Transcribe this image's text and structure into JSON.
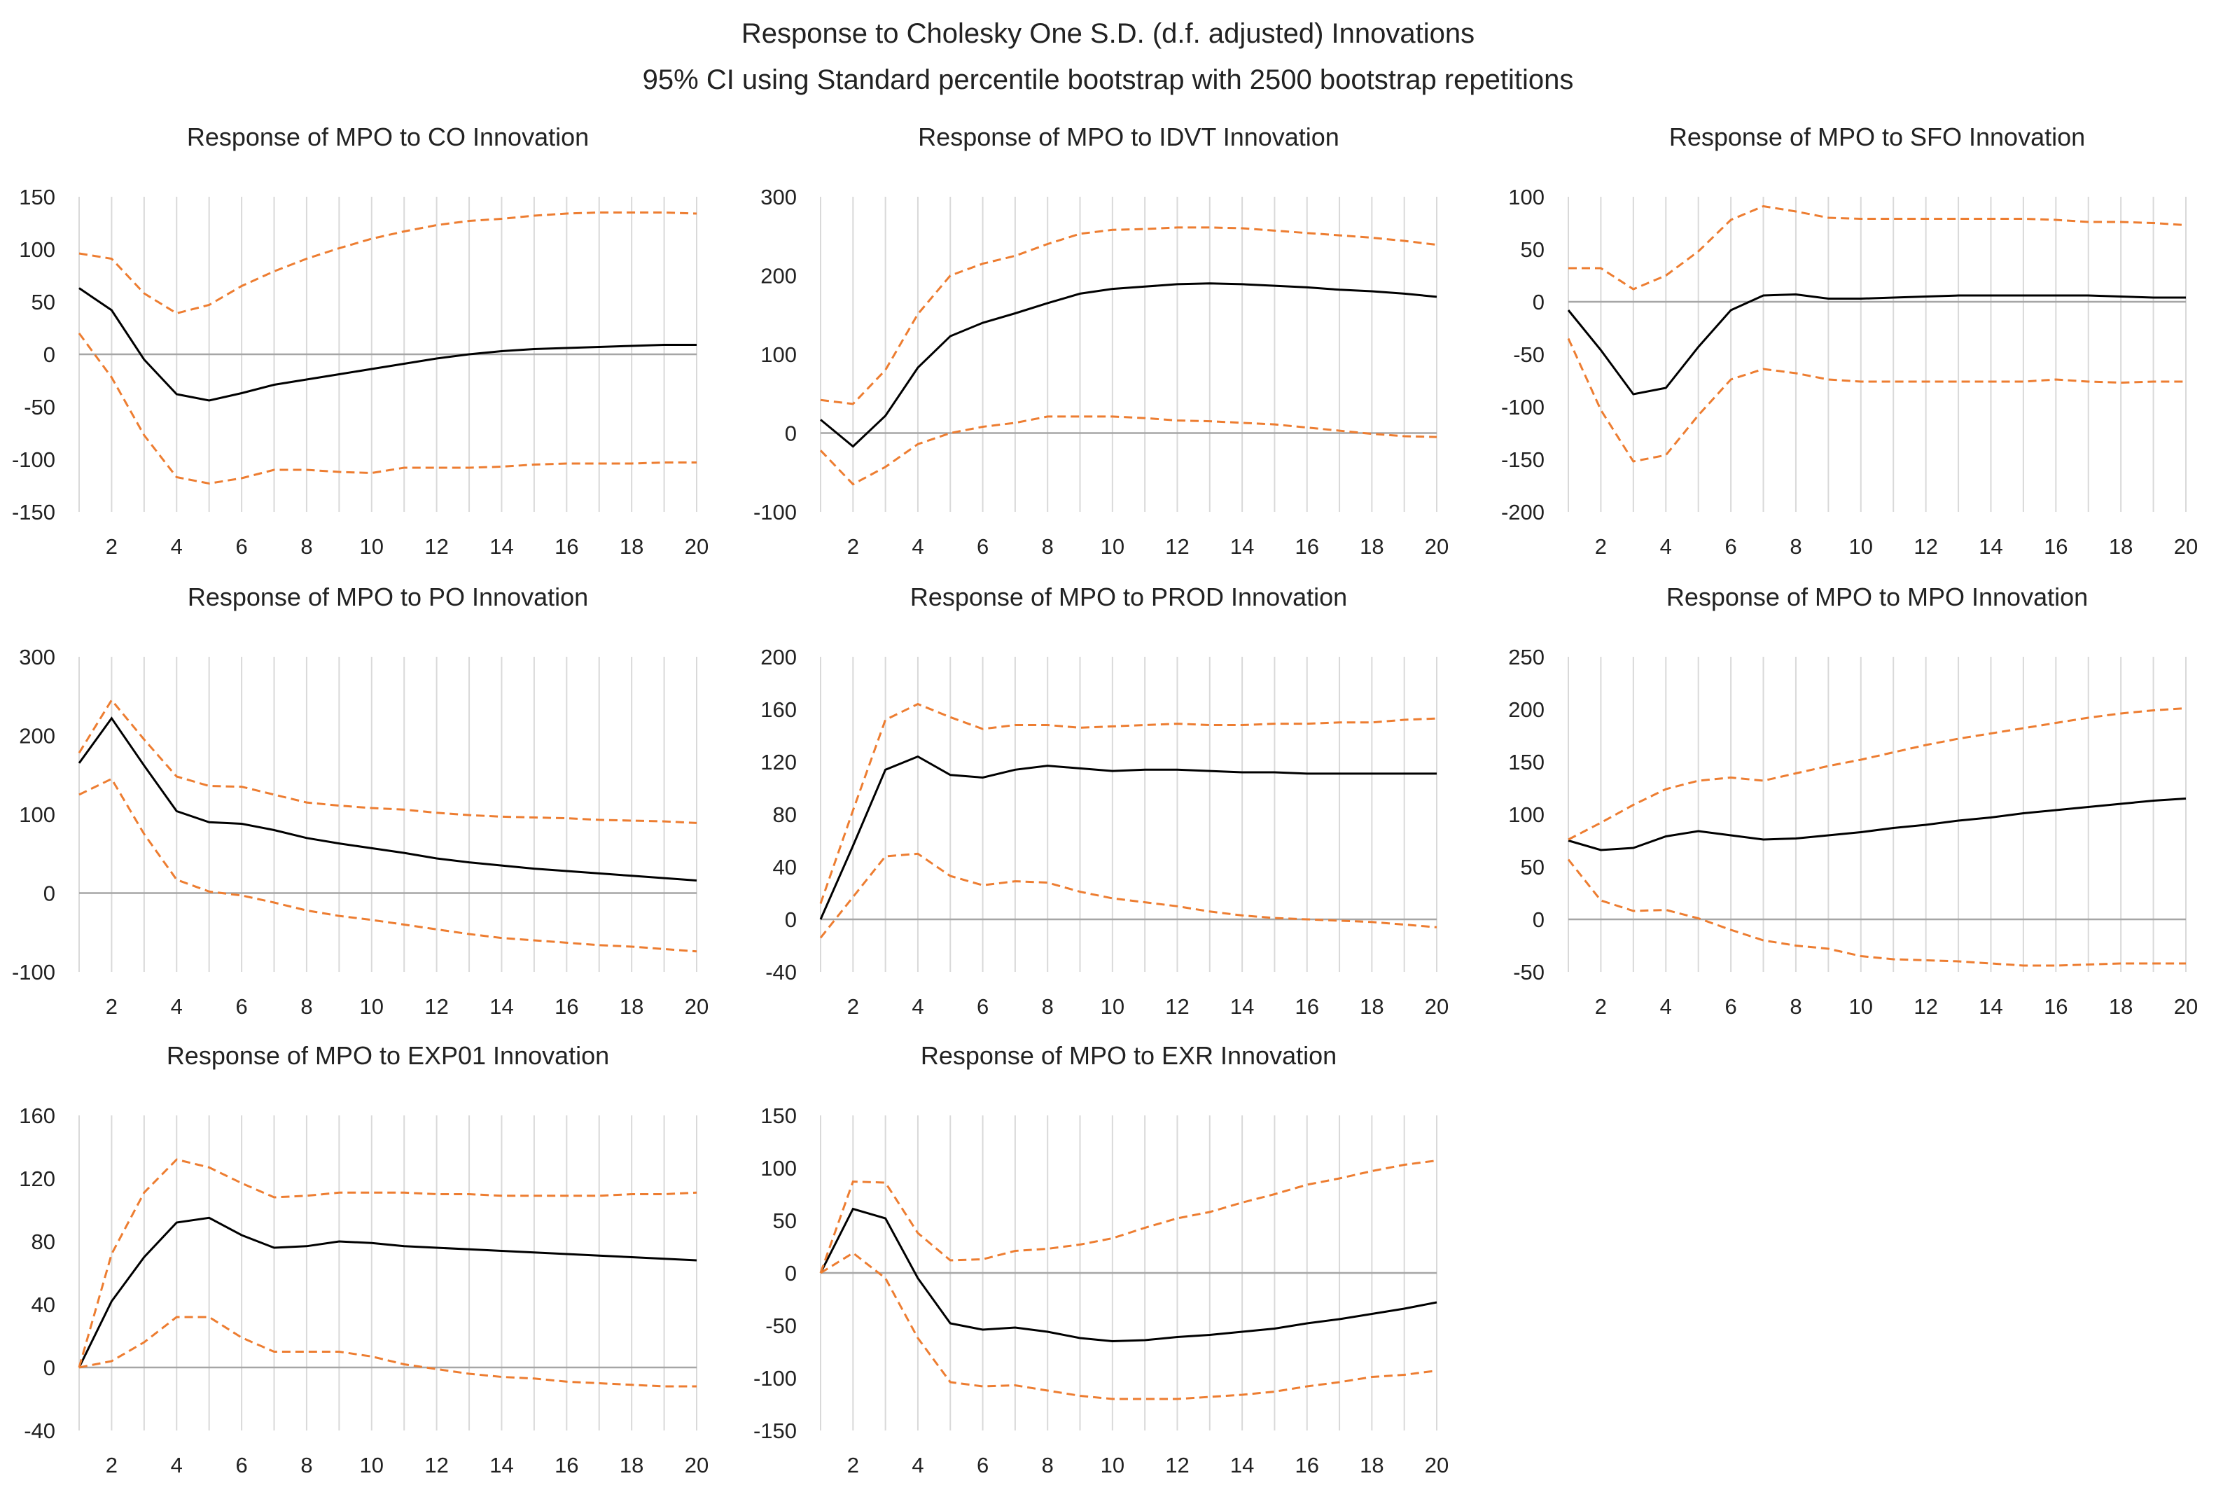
{
  "title": "Response to Cholesky One S.D. (d.f. adjusted) Innovations",
  "subtitle": "95% CI using Standard percentile bootstrap with 2500 bootstrap repetitions",
  "colors": {
    "response": "#000000",
    "ci": "#ED7D31",
    "grid": "#d9d9d9",
    "zero": "#a6a6a6"
  },
  "chart_data": [
    {
      "type": "line",
      "title": "Response of MPO to CO Innovation",
      "x": [
        1,
        2,
        3,
        4,
        5,
        6,
        7,
        8,
        9,
        10,
        11,
        12,
        13,
        14,
        15,
        16,
        17,
        18,
        19,
        20
      ],
      "xticks": [
        2,
        4,
        6,
        8,
        10,
        12,
        14,
        16,
        18,
        20
      ],
      "yticks": [
        -150,
        -100,
        -50,
        0,
        50,
        100,
        150
      ],
      "ylim": [
        -150,
        150
      ],
      "series": [
        {
          "name": "Response",
          "values": [
            63,
            42,
            -5,
            -38,
            -44,
            -37,
            -29,
            -24,
            -19,
            -14,
            -9,
            -4,
            0,
            3,
            5,
            6,
            7,
            8,
            9,
            9
          ]
        },
        {
          "name": "Upper CI",
          "values": [
            96,
            91,
            58,
            39,
            47,
            65,
            79,
            91,
            101,
            110,
            117,
            123,
            127,
            129,
            132,
            134,
            135,
            135,
            135,
            134
          ]
        },
        {
          "name": "Lower CI",
          "values": [
            20,
            -22,
            -77,
            -117,
            -123,
            -118,
            -110,
            -110,
            -112,
            -113,
            -108,
            -108,
            -108,
            -107,
            -105,
            -104,
            -104,
            -104,
            -103,
            -103
          ]
        }
      ]
    },
    {
      "type": "line",
      "title": "Response of MPO to IDVT Innovation",
      "x": [
        1,
        2,
        3,
        4,
        5,
        6,
        7,
        8,
        9,
        10,
        11,
        12,
        13,
        14,
        15,
        16,
        17,
        18,
        19,
        20
      ],
      "xticks": [
        2,
        4,
        6,
        8,
        10,
        12,
        14,
        16,
        18,
        20
      ],
      "yticks": [
        -100,
        0,
        100,
        200,
        300
      ],
      "ylim": [
        -100,
        300
      ],
      "series": [
        {
          "name": "Response",
          "values": [
            17,
            -17,
            22,
            83,
            123,
            140,
            152,
            165,
            177,
            183,
            186,
            189,
            190,
            189,
            187,
            185,
            182,
            180,
            177,
            173
          ]
        },
        {
          "name": "Upper CI",
          "values": [
            42,
            37,
            80,
            151,
            200,
            215,
            225,
            240,
            253,
            258,
            259,
            261,
            261,
            260,
            257,
            254,
            251,
            248,
            244,
            239
          ]
        },
        {
          "name": "Lower CI",
          "values": [
            -22,
            -65,
            -43,
            -14,
            0,
            8,
            13,
            21,
            21,
            21,
            19,
            16,
            15,
            13,
            11,
            7,
            3,
            -1,
            -4,
            -5
          ]
        }
      ]
    },
    {
      "type": "line",
      "title": "Response of MPO to SFO Innovation",
      "x": [
        1,
        2,
        3,
        4,
        5,
        6,
        7,
        8,
        9,
        10,
        11,
        12,
        13,
        14,
        15,
        16,
        17,
        18,
        19,
        20
      ],
      "xticks": [
        2,
        4,
        6,
        8,
        10,
        12,
        14,
        16,
        18,
        20
      ],
      "yticks": [
        -200,
        -150,
        -100,
        -50,
        0,
        50,
        100
      ],
      "ylim": [
        -200,
        100
      ],
      "series": [
        {
          "name": "Response",
          "values": [
            -8,
            -46,
            -88,
            -82,
            -43,
            -8,
            6,
            7,
            3,
            3,
            4,
            5,
            6,
            6,
            6,
            6,
            6,
            5,
            4,
            4
          ]
        },
        {
          "name": "Upper CI",
          "values": [
            32,
            32,
            12,
            25,
            48,
            78,
            91,
            86,
            80,
            79,
            79,
            79,
            79,
            79,
            79,
            78,
            76,
            76,
            75,
            73
          ]
        },
        {
          "name": "Lower CI",
          "values": [
            -35,
            -103,
            -152,
            -146,
            -108,
            -74,
            -64,
            -68,
            -74,
            -76,
            -76,
            -76,
            -76,
            -76,
            -76,
            -74,
            -76,
            -77,
            -76,
            -76
          ]
        }
      ]
    },
    {
      "type": "line",
      "title": "Response of MPO to PO Innovation",
      "x": [
        1,
        2,
        3,
        4,
        5,
        6,
        7,
        8,
        9,
        10,
        11,
        12,
        13,
        14,
        15,
        16,
        17,
        18,
        19,
        20
      ],
      "xticks": [
        2,
        4,
        6,
        8,
        10,
        12,
        14,
        16,
        18,
        20
      ],
      "yticks": [
        -100,
        0,
        100,
        200,
        300
      ],
      "ylim": [
        -100,
        300
      ],
      "series": [
        {
          "name": "Response",
          "values": [
            165,
            222,
            162,
            104,
            90,
            88,
            80,
            70,
            63,
            57,
            51,
            44,
            39,
            35,
            31,
            28,
            25,
            22,
            19,
            16
          ]
        },
        {
          "name": "Upper CI",
          "values": [
            178,
            245,
            195,
            148,
            136,
            135,
            125,
            115,
            111,
            108,
            106,
            102,
            99,
            97,
            96,
            95,
            93,
            92,
            91,
            89
          ]
        },
        {
          "name": "Lower CI",
          "values": [
            125,
            145,
            75,
            17,
            2,
            -3,
            -12,
            -22,
            -29,
            -34,
            -40,
            -46,
            -52,
            -57,
            -60,
            -63,
            -66,
            -68,
            -71,
            -74
          ]
        }
      ]
    },
    {
      "type": "line",
      "title": "Response of MPO to PROD Innovation",
      "x": [
        1,
        2,
        3,
        4,
        5,
        6,
        7,
        8,
        9,
        10,
        11,
        12,
        13,
        14,
        15,
        16,
        17,
        18,
        19,
        20
      ],
      "xticks": [
        2,
        4,
        6,
        8,
        10,
        12,
        14,
        16,
        18,
        20
      ],
      "yticks": [
        -40,
        0,
        40,
        80,
        120,
        160,
        200
      ],
      "ylim": [
        -40,
        200
      ],
      "series": [
        {
          "name": "Response",
          "values": [
            0,
            56,
            114,
            124,
            110,
            108,
            114,
            117,
            115,
            113,
            114,
            114,
            113,
            112,
            112,
            111,
            111,
            111,
            111,
            111
          ]
        },
        {
          "name": "Upper CI",
          "values": [
            12,
            83,
            152,
            164,
            154,
            145,
            148,
            148,
            146,
            147,
            148,
            149,
            148,
            148,
            149,
            149,
            150,
            150,
            152,
            153
          ]
        },
        {
          "name": "Lower CI",
          "values": [
            -14,
            17,
            48,
            50,
            33,
            26,
            29,
            28,
            21,
            16,
            13,
            10,
            6,
            3,
            1,
            0,
            -1,
            -2,
            -4,
            -6
          ]
        }
      ]
    },
    {
      "type": "line",
      "title": "Response of MPO to MPO Innovation",
      "x": [
        1,
        2,
        3,
        4,
        5,
        6,
        7,
        8,
        9,
        10,
        11,
        12,
        13,
        14,
        15,
        16,
        17,
        18,
        19,
        20
      ],
      "xticks": [
        2,
        4,
        6,
        8,
        10,
        12,
        14,
        16,
        18,
        20
      ],
      "yticks": [
        -50,
        0,
        50,
        100,
        150,
        200,
        250
      ],
      "ylim": [
        -50,
        250
      ],
      "series": [
        {
          "name": "Response",
          "values": [
            75,
            66,
            68,
            79,
            84,
            80,
            76,
            77,
            80,
            83,
            87,
            90,
            94,
            97,
            101,
            104,
            107,
            110,
            113,
            115
          ]
        },
        {
          "name": "Upper CI",
          "values": [
            76,
            92,
            109,
            124,
            132,
            135,
            132,
            139,
            146,
            152,
            159,
            166,
            172,
            177,
            182,
            187,
            192,
            196,
            199,
            201
          ]
        },
        {
          "name": "Lower CI",
          "values": [
            57,
            18,
            8,
            9,
            1,
            -10,
            -20,
            -25,
            -28,
            -35,
            -38,
            -39,
            -40,
            -42,
            -44,
            -44,
            -43,
            -42,
            -42,
            -42
          ]
        }
      ]
    },
    {
      "type": "line",
      "title": "Response of MPO to EXP01 Innovation",
      "x": [
        1,
        2,
        3,
        4,
        5,
        6,
        7,
        8,
        9,
        10,
        11,
        12,
        13,
        14,
        15,
        16,
        17,
        18,
        19,
        20
      ],
      "xticks": [
        2,
        4,
        6,
        8,
        10,
        12,
        14,
        16,
        18,
        20
      ],
      "yticks": [
        -40,
        0,
        40,
        80,
        120,
        160
      ],
      "ylim": [
        -40,
        160
      ],
      "series": [
        {
          "name": "Response",
          "values": [
            0,
            42,
            70,
            92,
            95,
            84,
            76,
            77,
            80,
            79,
            77,
            76,
            75,
            74,
            73,
            72,
            71,
            70,
            69,
            68
          ]
        },
        {
          "name": "Upper CI",
          "values": [
            0,
            72,
            111,
            132,
            127,
            117,
            108,
            109,
            111,
            111,
            111,
            110,
            110,
            109,
            109,
            109,
            109,
            110,
            110,
            111
          ]
        },
        {
          "name": "Lower CI",
          "values": [
            0,
            4,
            16,
            32,
            32,
            19,
            10,
            10,
            10,
            7,
            2,
            -1,
            -4,
            -6,
            -7,
            -9,
            -10,
            -11,
            -12,
            -12
          ]
        }
      ]
    },
    {
      "type": "line",
      "title": "Response of MPO to EXR Innovation",
      "x": [
        1,
        2,
        3,
        4,
        5,
        6,
        7,
        8,
        9,
        10,
        11,
        12,
        13,
        14,
        15,
        16,
        17,
        18,
        19,
        20
      ],
      "xticks": [
        2,
        4,
        6,
        8,
        10,
        12,
        14,
        16,
        18,
        20
      ],
      "yticks": [
        -150,
        -100,
        -50,
        0,
        50,
        100,
        150
      ],
      "ylim": [
        -150,
        150
      ],
      "series": [
        {
          "name": "Response",
          "values": [
            0,
            61,
            52,
            -5,
            -48,
            -54,
            -52,
            -56,
            -62,
            -65,
            -64,
            -61,
            -59,
            -56,
            -53,
            -48,
            -44,
            -39,
            -34,
            -28
          ]
        },
        {
          "name": "Upper CI",
          "values": [
            0,
            87,
            86,
            38,
            12,
            13,
            21,
            23,
            27,
            33,
            43,
            52,
            58,
            67,
            75,
            84,
            90,
            97,
            103,
            107
          ]
        },
        {
          "name": "Lower CI",
          "values": [
            0,
            19,
            -5,
            -62,
            -104,
            -108,
            -107,
            -112,
            -117,
            -120,
            -120,
            -120,
            -118,
            -116,
            -113,
            -108,
            -104,
            -99,
            -97,
            -93
          ]
        }
      ]
    }
  ]
}
